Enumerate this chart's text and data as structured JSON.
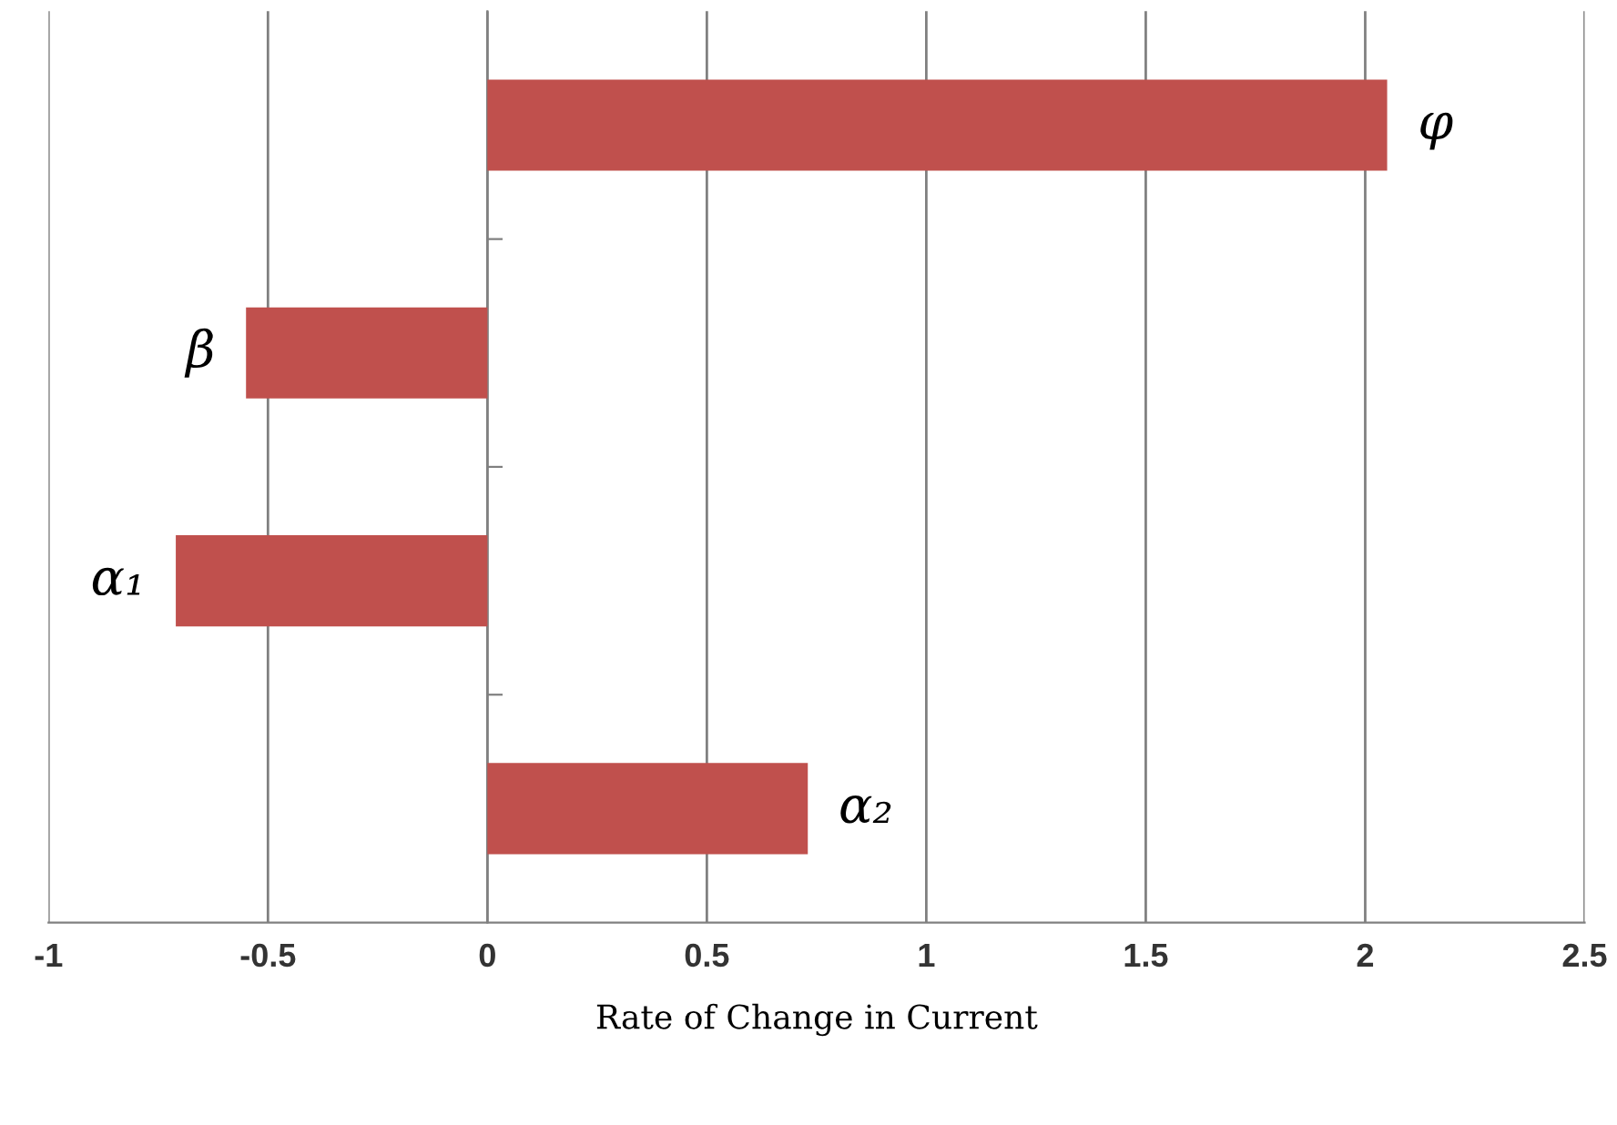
{
  "chart_data": {
    "type": "bar",
    "orientation": "horizontal",
    "xlabel": "Rate of Change in Current",
    "categories": [
      "φ",
      "β",
      "α₁",
      "α₂"
    ],
    "values": [
      2.05,
      -0.55,
      -0.71,
      0.73
    ],
    "color": "#c0504d",
    "xlim": [
      -1,
      2.5
    ],
    "xticks": [
      -1,
      -0.5,
      0,
      0.5,
      1,
      1.5,
      2,
      2.5
    ],
    "grid": "x",
    "tick_labels": "x",
    "legend": false
  }
}
